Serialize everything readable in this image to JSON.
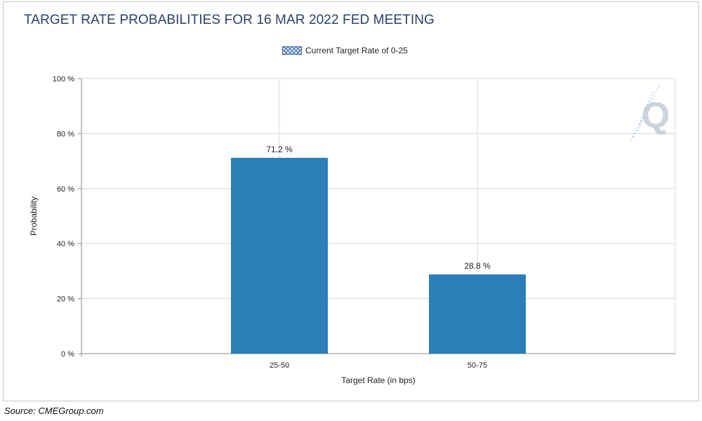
{
  "title": "TARGET RATE PROBABILITIES FOR 16 MAR 2022 FED MEETING",
  "legend": {
    "label": "Current Target Rate of 0-25"
  },
  "source": "Source:  CMEGroup.com",
  "watermark": {
    "letter": "Q",
    "color": "#c5ccd8"
  },
  "colors": {
    "bar": "#2b7eb8",
    "grid": "#d9d9d9",
    "title": "#2a3f6a",
    "legend_accent": "#3b6fb0"
  },
  "chart_data": {
    "type": "bar",
    "title": "TARGET RATE PROBABILITIES FOR 16 MAR 2022 FED MEETING",
    "xlabel": "Target Rate (in bps)",
    "ylabel": "Probability",
    "categories": [
      "25-50",
      "50-75"
    ],
    "values": [
      71.2,
      28.8
    ],
    "value_labels": [
      "71.2 %",
      "28.8 %"
    ],
    "ylim": [
      0,
      100
    ],
    "yticks": [
      0,
      20,
      40,
      60,
      80,
      100
    ],
    "ytick_labels": [
      "0 %",
      "20 %",
      "40 %",
      "60 %",
      "80 %",
      "100 %"
    ],
    "grid": true,
    "legend_position": "top-center"
  }
}
